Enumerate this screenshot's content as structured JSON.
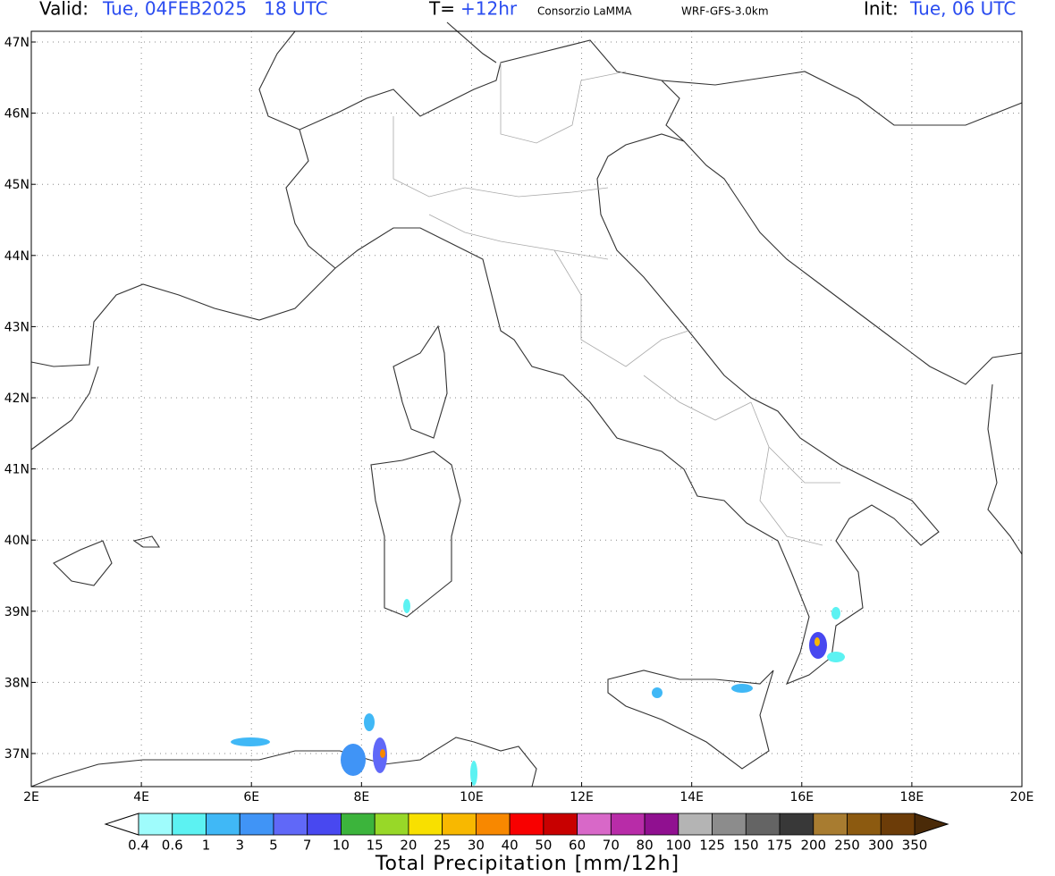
{
  "header": {
    "valid_label": "Valid:",
    "valid_time": "Tue, 04FEB2025   18 UTC",
    "step_label": "T=",
    "step": "+12hr",
    "source": "Consorzio LaMMA",
    "model": "WRF-GFS-3.0km",
    "init_label": "Init:",
    "init_time": "Tue, 06 UTC"
  },
  "axes": {
    "lat_labels": [
      "47N",
      "46N",
      "45N",
      "44N",
      "43N",
      "42N",
      "41N",
      "40N",
      "39N",
      "38N",
      "37N"
    ],
    "lon_labels": [
      "2E",
      "4E",
      "6E",
      "8E",
      "10E",
      "12E",
      "14E",
      "16E",
      "18E",
      "20E"
    ]
  },
  "colorbar": {
    "title": "Total Precipitation [mm/12h]",
    "labels": [
      0.4,
      0.6,
      1,
      3,
      5,
      7,
      10,
      15,
      20,
      25,
      30,
      40,
      50,
      60,
      70,
      80,
      100,
      125,
      150,
      175,
      200,
      250,
      300,
      350
    ],
    "under_color": "#ffffff",
    "over_color": "#4a2a08",
    "colors": [
      "#9ffcfc",
      "#5cf2f2",
      "#40b8f6",
      "#4094f6",
      "#6068f8",
      "#4848f0",
      "#3cb43c",
      "#98d828",
      "#f8e000",
      "#f8b800",
      "#f88800",
      "#f80000",
      "#c80000",
      "#d868c8",
      "#b82ca8",
      "#901090",
      "#b4b4b4",
      "#8c8c8c",
      "#646464",
      "#383838",
      "#a87c30",
      "#8c5a10",
      "#6c3c08"
    ]
  }
}
